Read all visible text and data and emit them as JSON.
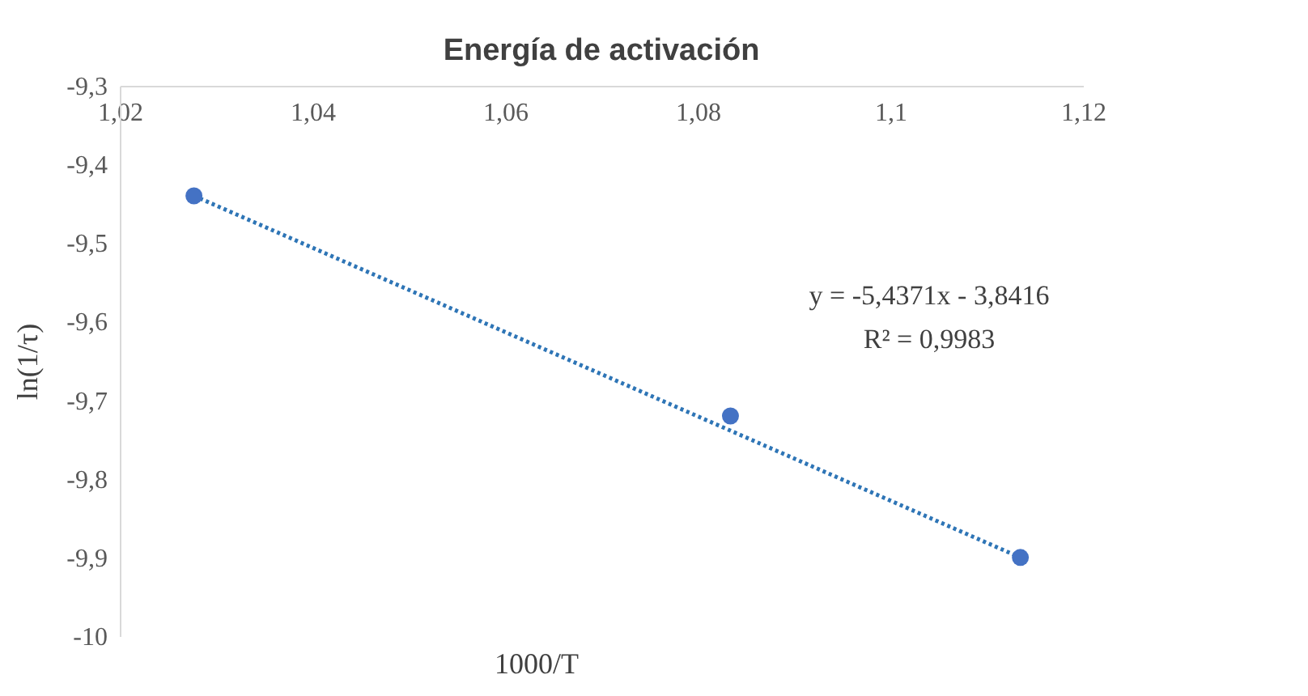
{
  "chart_data": {
    "type": "scatter",
    "title": "Energía de activación",
    "xlabel": "1000/T",
    "ylabel": "ln(1/τ)",
    "xlim": [
      1.02,
      1.12
    ],
    "xticks": [
      {
        "value": 1.02,
        "label": "1,02"
      },
      {
        "value": 1.04,
        "label": "1,04"
      },
      {
        "value": 1.06,
        "label": "1,06"
      },
      {
        "value": 1.08,
        "label": "1,08"
      },
      {
        "value": 1.1,
        "label": "1,1"
      },
      {
        "value": 1.12,
        "label": "1,12"
      }
    ],
    "ylim": [
      -10,
      -9.3
    ],
    "yticks": [
      {
        "value": -10,
        "label": "-10"
      },
      {
        "value": -9.9,
        "label": "-9,9"
      },
      {
        "value": -9.8,
        "label": "-9,8"
      },
      {
        "value": -9.7,
        "label": "-9,7"
      },
      {
        "value": -9.6,
        "label": "-9,6"
      },
      {
        "value": -9.5,
        "label": "-9,5"
      },
      {
        "value": -9.4,
        "label": "-9,4"
      },
      {
        "value": -9.3,
        "label": "-9,3"
      }
    ],
    "grid": false,
    "series": [
      {
        "type": "scatter",
        "color": "#4472c4",
        "marker": "circle",
        "x": [
          1.0277,
          1.0834,
          1.1135
        ],
        "values": [
          -9.44,
          -9.72,
          -9.9
        ]
      },
      {
        "type": "line",
        "color": "#2e75b6",
        "line_style": "dotted",
        "marker": "none",
        "x": [
          1.0277,
          1.1135
        ],
        "values": [
          -9.44,
          -9.9
        ]
      }
    ],
    "annotations": [
      "y = -5,4371x - 3,8416",
      "R² = 0,9983"
    ]
  }
}
